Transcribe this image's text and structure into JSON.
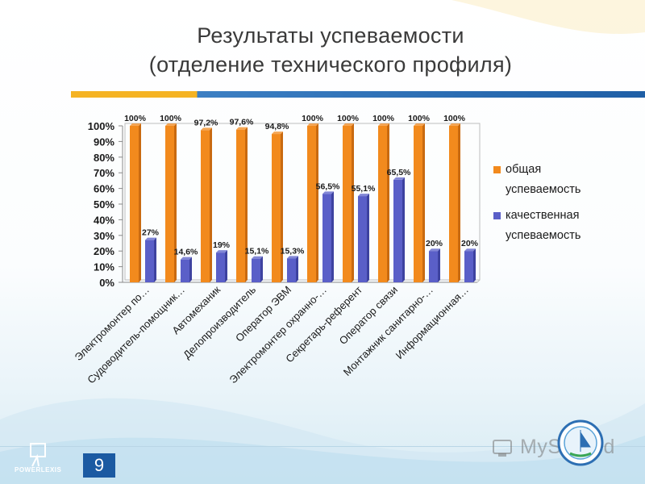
{
  "slide": {
    "title_line1": "Результаты успеваемости",
    "title_line2": "(отделение технического профиля)",
    "slide_number": "9",
    "logo_text": "POWERLEXIS",
    "watermark_text": "MyShared"
  },
  "colors": {
    "series1": "#f28a1d",
    "series2": "#5a5fc8",
    "accent_orange": "#f5b323",
    "accent_blue": "#1b5aa2"
  },
  "chart_data": {
    "type": "bar",
    "categories": [
      "Электромонтер по…",
      "Судоводитель-помощник…",
      "Автомеханик",
      "Делопроизводитель",
      "Оператор ЭВМ",
      "Электромонтер охранно-…",
      "Секретарь-референт",
      "Оператор связи",
      "Монтажник санитарно-…",
      "Информационная…"
    ],
    "series": [
      {
        "name": "общая успеваемость",
        "values": [
          100,
          100,
          97.2,
          97.6,
          94.8,
          100,
          100,
          100,
          100,
          100
        ],
        "labels": [
          "100%",
          "100%",
          "97,2%",
          "97,6%",
          "94,8%",
          "100%",
          "100%",
          "100%",
          "100%",
          "100%"
        ]
      },
      {
        "name": "качественная успеваемость",
        "values": [
          27,
          14.6,
          19,
          15.1,
          15.3,
          56.5,
          55.1,
          65.5,
          20,
          20
        ],
        "labels": [
          "27%",
          "14,6%",
          "19%",
          "15,1%",
          "15,3%",
          "56,5%",
          "55,1%",
          "65,5%",
          "20%",
          "20%"
        ]
      }
    ],
    "y_ticks": [
      "0%",
      "10%",
      "20%",
      "30%",
      "40%",
      "50%",
      "60%",
      "70%",
      "80%",
      "90%",
      "100%"
    ],
    "ylim": [
      0,
      100
    ],
    "legend_position": "right",
    "legend": [
      {
        "line1": "общая",
        "line2": "успеваемость"
      },
      {
        "line1": "качественная",
        "line2": "успеваемость"
      }
    ],
    "grid": false
  }
}
